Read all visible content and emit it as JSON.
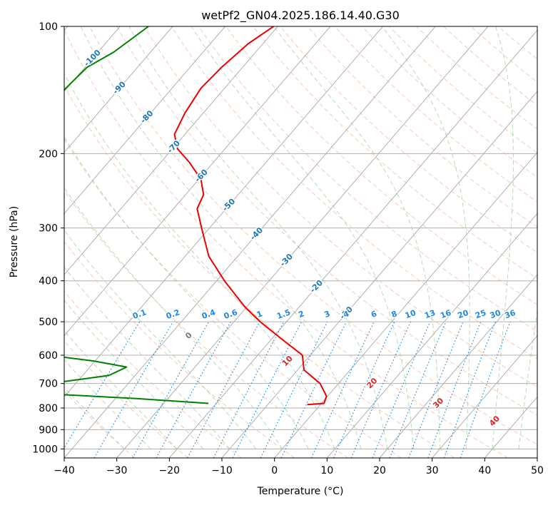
{
  "chart_data": {
    "type": "line",
    "subtype": "skew-T log-p diagram",
    "title": "wetPf2_GN04.2025.186.14.40.G30",
    "xlabel": "Temperature (°C)",
    "ylabel": "Pressure (hPa)",
    "xlim": [
      -40,
      50
    ],
    "ylim": [
      1050,
      100
    ],
    "yscale": "log",
    "x_ticks": [
      "−40",
      "−30",
      "−20",
      "−10",
      "0",
      "10",
      "20",
      "30",
      "40",
      "50"
    ],
    "y_ticks": [
      "100",
      "200",
      "300",
      "400",
      "500",
      "600",
      "700",
      "800",
      "900",
      "1000"
    ],
    "grid": true,
    "colors": {
      "temperature": "#ee0000",
      "dewpoint": "#008000",
      "isotherm": "#b0b0b0",
      "dry_adiabat": "#f4a582",
      "moist_adiabat": "#99cc99",
      "mixing_ratio": "#1e88e5",
      "temp_label": "#1f77b4",
      "mixing_label": "#1e88e5",
      "moist_label": "#d62728"
    },
    "series": [
      {
        "role": "temperature",
        "points": [
          [
            -70.8,
            100
          ],
          [
            -72.8,
            110
          ],
          [
            -74.0,
            125
          ],
          [
            -74.5,
            140
          ],
          [
            -73.5,
            160
          ],
          [
            -72.0,
            180
          ],
          [
            -69.0,
            195
          ],
          [
            -64.5,
            210
          ],
          [
            -59.6,
            230
          ],
          [
            -56.6,
            250
          ],
          [
            -55.5,
            270
          ],
          [
            -51.5,
            300
          ],
          [
            -45.5,
            350
          ],
          [
            -38.5,
            400
          ],
          [
            -30.5,
            460
          ],
          [
            -25.0,
            500
          ],
          [
            -18.0,
            550
          ],
          [
            -11.5,
            600
          ],
          [
            -8.8,
            650
          ],
          [
            -3.5,
            700
          ],
          [
            -0.2,
            750
          ],
          [
            0.5,
            780
          ],
          [
            -2.5,
            785
          ]
        ]
      },
      {
        "role": "dewpoint",
        "points": [
          [
            -94.6,
            100
          ],
          [
            -97.0,
            115
          ],
          [
            -99.6,
            125
          ],
          [
            -100.2,
            140
          ],
          [
            -100.3,
            155
          ],
          [
            -99.0,
            170
          ],
          [
            -99.5,
            185
          ],
          [
            -113.5,
            198
          ],
          [
            -107.0,
            205
          ],
          [
            -97.0,
            220
          ],
          [
            -111.0,
            240
          ],
          [
            -120.0,
            260
          ],
          [
            -120.5,
            270
          ],
          [
            -125.0,
            330
          ],
          [
            -110.5,
            400
          ],
          [
            -108.5,
            410
          ],
          [
            -111.0,
            420
          ],
          [
            -93.5,
            450
          ],
          [
            -72.5,
            480
          ],
          [
            -75.0,
            500
          ],
          [
            -96.0,
            520
          ],
          [
            -105.0,
            540
          ],
          [
            -70.0,
            580
          ],
          [
            -50.0,
            620
          ],
          [
            -43.0,
            640
          ],
          [
            -45.0,
            670
          ],
          [
            -55.0,
            700
          ],
          [
            -70.0,
            720
          ],
          [
            -54.0,
            740
          ],
          [
            -36.0,
            760
          ],
          [
            -21.5,
            780
          ]
        ]
      }
    ],
    "isotherm_labels": [
      "-100",
      "-90",
      "-80",
      "-70",
      "-60",
      "-50",
      "-40",
      "-30",
      "-20",
      "-10"
    ],
    "mixing_ratio_labels": [
      "0.1",
      "0.2",
      "0.4",
      "0.6",
      "1",
      "1.5",
      "2",
      "3",
      "4",
      "6",
      "8",
      "10",
      "13",
      "16",
      "20",
      "25",
      "30",
      "36"
    ],
    "mixing_ratio_values": [
      0.1,
      0.2,
      0.4,
      0.6,
      1,
      1.5,
      2,
      3,
      4,
      6,
      8,
      10,
      13,
      16,
      20,
      25,
      30,
      36
    ],
    "moist_adiabat_labels": [
      "0",
      "10",
      "20",
      "30",
      "40"
    ]
  }
}
